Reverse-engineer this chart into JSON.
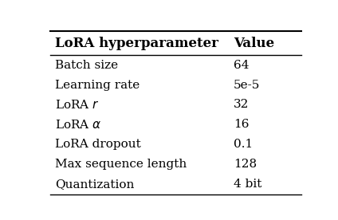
{
  "col1_header": "LoRA hyperparameter",
  "col2_header": "Value",
  "rows": [
    [
      "Batch size",
      "64"
    ],
    [
      "Learning rate",
      "5e-5"
    ],
    [
      "LoRA $r$",
      "32"
    ],
    [
      "LoRA $\\alpha$",
      "16"
    ],
    [
      "LoRA dropout",
      "0.1"
    ],
    [
      "Max sequence length",
      "128"
    ],
    [
      "Quantization",
      "4 bit"
    ]
  ],
  "background_color": "#ffffff",
  "text_color": "#000000",
  "header_fontsize": 12,
  "body_fontsize": 11,
  "fig_width": 4.24,
  "fig_height": 2.76
}
